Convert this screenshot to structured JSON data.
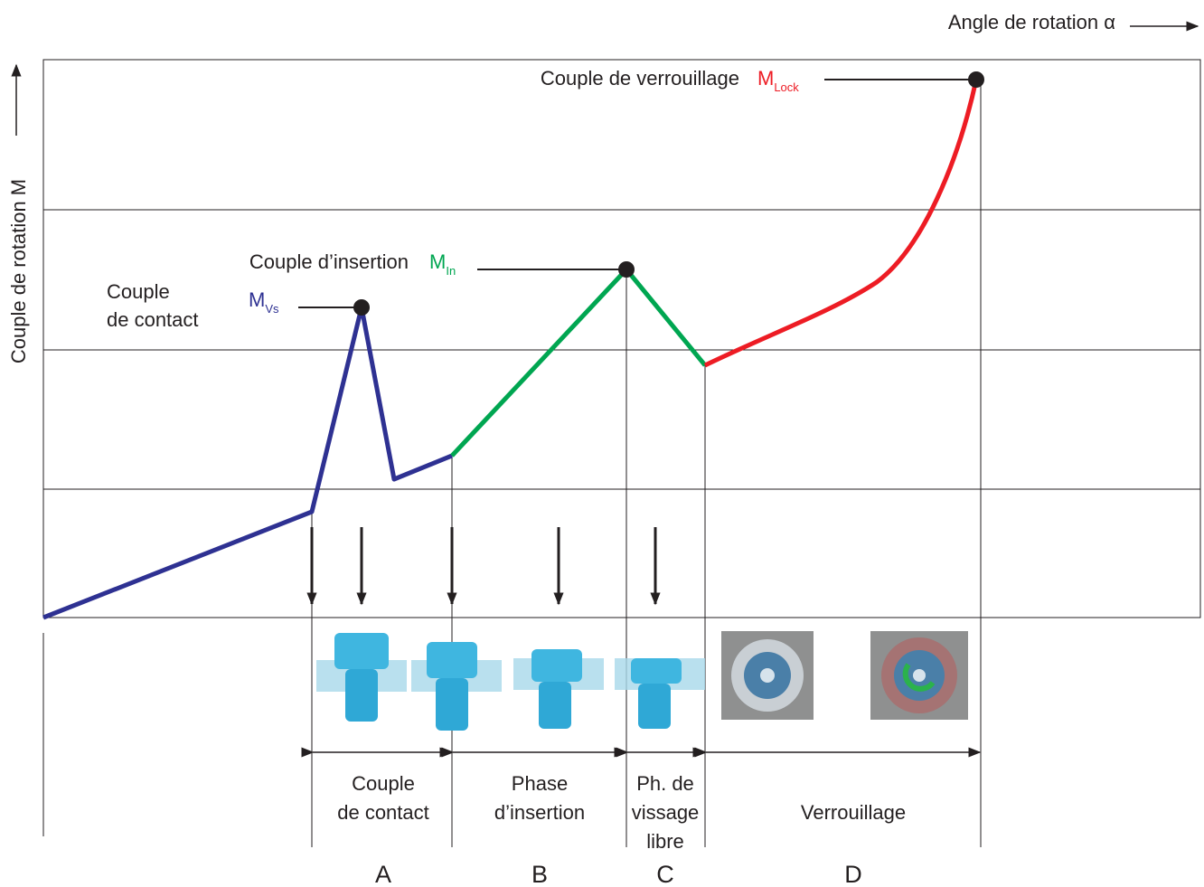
{
  "axes": {
    "x_label": "Angle de rotation α",
    "y_label": "Couple de rotation M"
  },
  "annotations": [
    {
      "label": "Couple de verrouillage",
      "symbol": "M",
      "subscript": "Lock"
    },
    {
      "label": "Couple d’insertion",
      "symbol": "M",
      "subscript": "In"
    },
    {
      "label_lines": [
        "Couple",
        "de contact"
      ],
      "symbol": "M",
      "subscript": "Vs"
    }
  ],
  "phases": [
    {
      "lines": [
        "Couple",
        "de contact"
      ],
      "letter": "A"
    },
    {
      "lines": [
        "Phase",
        "d’insertion"
      ],
      "letter": "B"
    },
    {
      "lines": [
        "Ph. de",
        "vissage",
        "libre"
      ],
      "letter": "C"
    },
    {
      "lines": [
        "Verrouillage"
      ],
      "letter": "D"
    }
  ]
}
